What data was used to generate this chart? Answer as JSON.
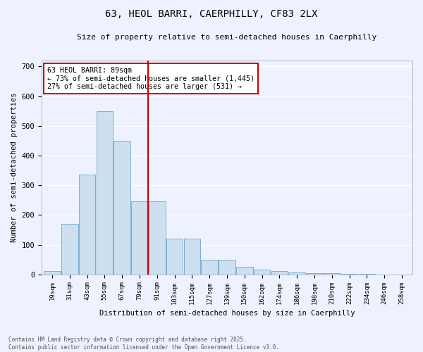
{
  "title1": "63, HEOL BARRI, CAERPHILLY, CF83 2LX",
  "title2": "Size of property relative to semi-detached houses in Caerphilly",
  "xlabel": "Distribution of semi-detached houses by size in Caerphilly",
  "ylabel": "Number of semi-detached properties",
  "bin_labels": [
    "19sqm",
    "31sqm",
    "43sqm",
    "55sqm",
    "67sqm",
    "79sqm",
    "91sqm",
    "103sqm",
    "115sqm",
    "127sqm",
    "139sqm",
    "150sqm",
    "162sqm",
    "174sqm",
    "186sqm",
    "198sqm",
    "210sqm",
    "222sqm",
    "234sqm",
    "246sqm",
    "258sqm"
  ],
  "bar_values": [
    10,
    170,
    335,
    550,
    450,
    245,
    245,
    120,
    120,
    50,
    50,
    25,
    15,
    10,
    7,
    5,
    4,
    2,
    1,
    0,
    0
  ],
  "bar_color": "#cce0f0",
  "bar_edge_color": "#7ab0d0",
  "vline_x": 5.5,
  "vline_color": "#cc0000",
  "annotation_text": "63 HEOL BARRI: 89sqm\n← 73% of semi-detached houses are smaller (1,445)\n27% of semi-detached houses are larger (531) →",
  "annotation_box_color": "#ffffff",
  "annotation_box_edge_color": "#cc0000",
  "ylim": [
    0,
    720
  ],
  "yticks": [
    0,
    100,
    200,
    300,
    400,
    500,
    600,
    700
  ],
  "background_color": "#eef2ff",
  "grid_color": "#ffffff",
  "footer_text": "Contains HM Land Registry data © Crown copyright and database right 2025.\nContains public sector information licensed under the Open Government Licence v3.0."
}
